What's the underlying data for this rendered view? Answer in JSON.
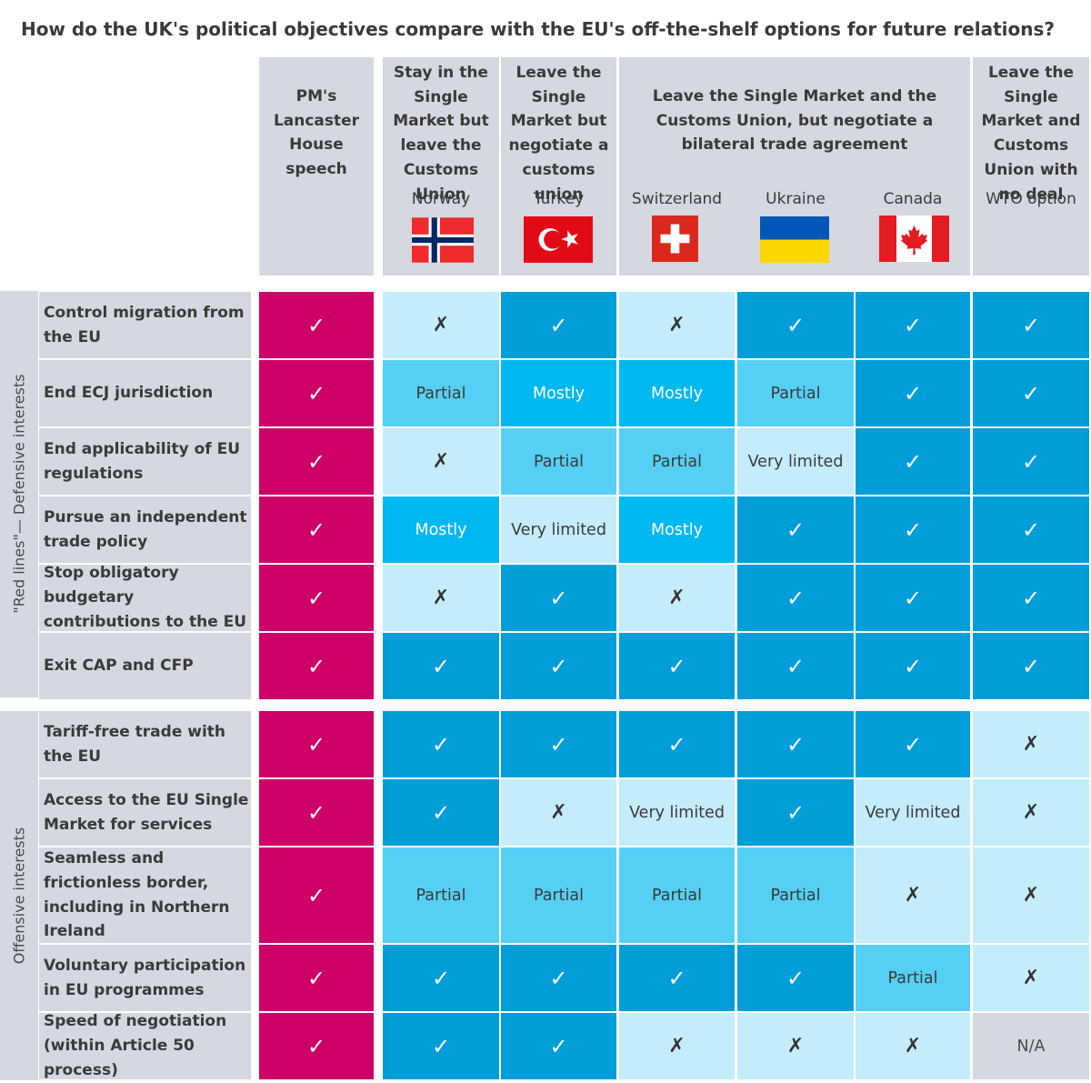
{
  "title": "How do the UK's political objectives compare with the EU's off-the-shelf options for future relations?",
  "headers": {
    "pm": "PM's Lancaster House speech",
    "sm_out_cu": "Stay in the Single Market but leave the Customs Union",
    "cu": "Leave the Single Market but negotiate a customs union",
    "bilateral": "Leave the Single Market and the Customs Union, but negotiate a bilateral trade agreement",
    "nodeal": "Leave the Single Market and Customs Union with no deal"
  },
  "countries": [
    "Norway",
    "Turkey",
    "Switzerland",
    "Ukraine",
    "Canada",
    "WTO option"
  ],
  "flag_icons": [
    "norway-flag",
    "turkey-flag",
    "switzerland-flag",
    "ukraine-flag",
    "canada-flag"
  ],
  "sections": {
    "defensive": "\"Red lines\"— Defensive interests",
    "offensive": "Offensive interests"
  },
  "symbols": {
    "check": "✓",
    "cross": "✗"
  },
  "colors": {
    "pm": "#cc0066",
    "yes": "#009ed8",
    "mostly": "#00b8f0",
    "partial": "#56cff5",
    "limited_no": "#c4ecfb",
    "na": "#d5d8df"
  },
  "chart_data": {
    "type": "table",
    "columns": [
      "PM's Lancaster House speech",
      "Norway",
      "Turkey",
      "Switzerland",
      "Ukraine",
      "Canada",
      "WTO option"
    ],
    "rows": [
      {
        "section": "defensive",
        "label": "Control migration from the EU",
        "values": [
          "check",
          "cross",
          "check",
          "cross",
          "check",
          "check",
          "check"
        ]
      },
      {
        "section": "defensive",
        "label": "End ECJ jurisdiction",
        "values": [
          "check",
          "Partial",
          "Mostly",
          "Mostly",
          "Partial",
          "check",
          "check"
        ]
      },
      {
        "section": "defensive",
        "label": "End applicability of EU regulations",
        "values": [
          "check",
          "cross",
          "Partial",
          "Partial",
          "Very limited",
          "check",
          "check"
        ]
      },
      {
        "section": "defensive",
        "label": "Pursue an independent trade policy",
        "values": [
          "check",
          "Mostly",
          "Very limited",
          "Mostly",
          "check",
          "check",
          "check"
        ]
      },
      {
        "section": "defensive",
        "label": "Stop obligatory budgetary contributions to the EU",
        "values": [
          "check",
          "cross",
          "check",
          "cross",
          "check",
          "check",
          "check"
        ]
      },
      {
        "section": "defensive",
        "label": "Exit CAP and CFP",
        "values": [
          "check",
          "check",
          "check",
          "check",
          "check",
          "check",
          "check"
        ]
      },
      {
        "section": "offensive",
        "label": "Tariff-free trade with the EU",
        "values": [
          "check",
          "check",
          "check",
          "check",
          "check",
          "check",
          "cross"
        ]
      },
      {
        "section": "offensive",
        "label": "Access to the EU Single Market for services",
        "values": [
          "check",
          "check",
          "cross",
          "Very limited",
          "check",
          "Very limited",
          "cross"
        ]
      },
      {
        "section": "offensive",
        "label": "Seamless and frictionless border, including in Northern Ireland",
        "values": [
          "check",
          "Partial",
          "Partial",
          "Partial",
          "Partial",
          "cross",
          "cross"
        ]
      },
      {
        "section": "offensive",
        "label": "Voluntary participation in EU programmes",
        "values": [
          "check",
          "check",
          "check",
          "check",
          "check",
          "Partial",
          "cross"
        ]
      },
      {
        "section": "offensive",
        "label": "Speed of negotiation (within Article 50 process)",
        "values": [
          "check",
          "check",
          "check",
          "cross",
          "cross",
          "cross",
          "N/A"
        ]
      }
    ]
  }
}
